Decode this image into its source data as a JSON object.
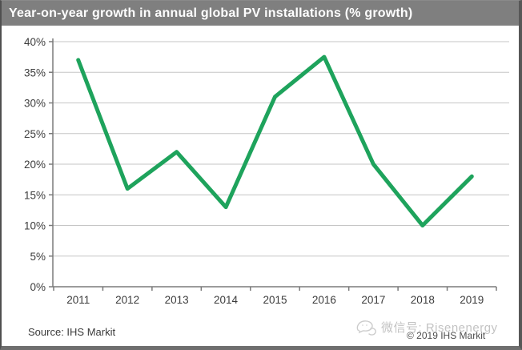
{
  "title_bar": {
    "text": "Year-on-year growth in annual global PV installations (% growth)"
  },
  "footer": {
    "source": "Source: IHS Markit",
    "watermark": "微信号: Risenenergy",
    "copyright": "© 2019 IHS Markit",
    "watermark_icon": "wechat-sketch-logo-icon"
  },
  "colors": {
    "title_bg": "#7f7f7f",
    "title_text": "#ffffff",
    "line": "#1ea35c",
    "grid": "#c6c6c6",
    "axis": "#7a7a7a",
    "tick_label": "#3c3c3c",
    "watermark": "#c3c3c3",
    "copyright_text": "#4d4d4d",
    "frame_border": "#4f4f4f"
  },
  "chart_data": {
    "type": "line",
    "title": "Year-on-year growth in annual global PV installations (% growth)",
    "categories": [
      "2011",
      "2012",
      "2013",
      "2014",
      "2015",
      "2016",
      "2017",
      "2018",
      "2019"
    ],
    "values": [
      37,
      16,
      22,
      13,
      31,
      37.5,
      20,
      10,
      18
    ],
    "series_name": "YoY growth of annual global PV installations",
    "xlabel": "",
    "ylabel": "",
    "ylim": [
      0,
      40
    ],
    "ytick_step": 5,
    "ytick_labels": [
      "0%",
      "5%",
      "10%",
      "15%",
      "20%",
      "25%",
      "30%",
      "35%",
      "40%"
    ],
    "grid": true,
    "legend": false,
    "line_width": 5
  }
}
